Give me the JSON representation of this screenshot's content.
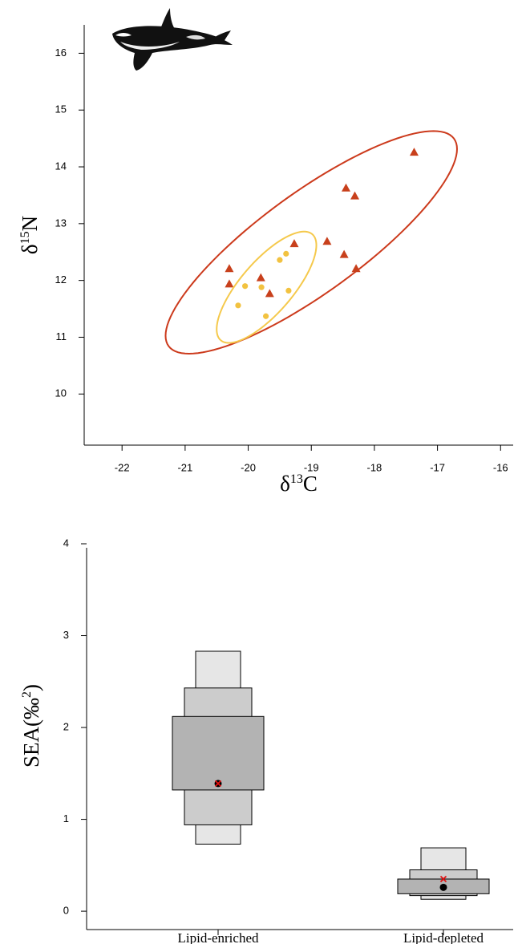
{
  "chart_data": [
    {
      "type": "scatter",
      "xlabel_parts": [
        "δ",
        "13",
        "C"
      ],
      "ylabel_parts": [
        "δ",
        "15",
        "N"
      ],
      "xlim": [
        -22.6,
        -15.8
      ],
      "ylim": [
        9.1,
        16.5
      ],
      "xticks": [
        -22,
        -21,
        -20,
        -19,
        -18,
        -17,
        -16
      ],
      "yticks": [
        10,
        11,
        12,
        13,
        14,
        15,
        16
      ],
      "series": [
        {
          "color": "#c8401c",
          "marker": "triangle",
          "x": [
            -17.37,
            -18.45,
            -18.31,
            -18.75,
            -18.48,
            -18.29,
            -19.27,
            -20.3,
            -20.3,
            -19.8,
            -19.66
          ],
          "values": [
            14.26,
            13.63,
            13.49,
            12.69,
            12.46,
            12.21,
            12.65,
            12.21,
            11.94,
            12.05,
            11.77
          ],
          "ellipse": {
            "color": "#cc3a1c",
            "cx": -19.0,
            "cy": 12.67,
            "x_radius": 2.31,
            "y_radius": 1.96,
            "phase": 33
          }
        },
        {
          "color": "#f2c240",
          "marker": "circle",
          "x": [
            -20.05,
            -20.16,
            -19.79,
            -19.5,
            -19.4,
            -19.36,
            -19.72
          ],
          "values": [
            11.9,
            11.56,
            11.88,
            12.36,
            12.47,
            11.82,
            11.37
          ],
          "ellipse": {
            "color": "#f5c94c",
            "cx": -19.71,
            "cy": 11.88,
            "x_radius": 0.79,
            "y_radius": 0.98,
            "phase": 41
          }
        }
      ]
    },
    {
      "type": "density_box",
      "categories": [
        "Lipid-enriched",
        "Lipid-depleted"
      ],
      "ylabel_parts": [
        "SEA(‰",
        "2",
        ")"
      ],
      "ylim": [
        -0.2,
        4.0
      ],
      "yticks": [
        0,
        1,
        2,
        3,
        4
      ],
      "level_fills": [
        "#e6e6e6",
        "#cccccc",
        "#b3b3b3"
      ],
      "mode_color": "#000000",
      "mean_color": "#e01010",
      "boxes": [
        {
          "ranges": [
            [
              0.73,
              2.83
            ],
            [
              0.94,
              2.43
            ],
            [
              1.32,
              2.12
            ]
          ],
          "mode": 1.39,
          "mean": 1.39
        },
        {
          "ranges": [
            [
              0.13,
              0.69
            ],
            [
              0.17,
              0.45
            ],
            [
              0.19,
              0.35
            ]
          ],
          "mode": 0.26,
          "mean": 0.35
        }
      ]
    }
  ]
}
